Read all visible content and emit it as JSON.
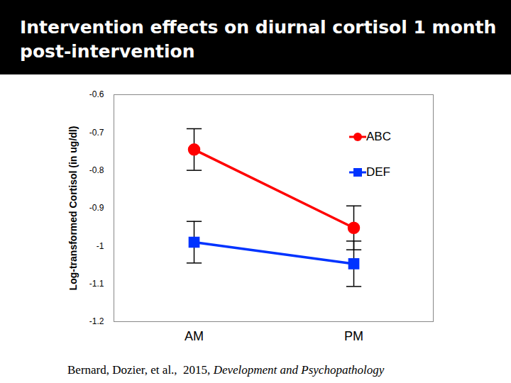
{
  "chart_data": {
    "type": "line",
    "title": "Intervention effects on diurnal cortisol 1 month post-intervention",
    "ylabel": "Log-transformed Cortisol (in ug/dl)",
    "caption": "Bernard, Dozier, et al.,  2015, Development and Psychopathology",
    "categories": [
      "AM",
      "PM"
    ],
    "series": [
      {
        "name": "ABC",
        "color": "#ff0000",
        "marker": "circle",
        "values": [
          -0.745,
          -0.952
        ],
        "errors": [
          0.055,
          0.058
        ]
      },
      {
        "name": "DEF",
        "color": "#0033ff",
        "marker": "square",
        "values": [
          -0.99,
          -1.047
        ],
        "errors": [
          0.055,
          0.06
        ]
      }
    ],
    "ylim": [
      -1.2,
      -0.6
    ],
    "yticks": [
      -1.2,
      -1.1,
      -1,
      -0.9,
      -0.8,
      -0.7,
      -0.6
    ],
    "grid": false,
    "legend": "right"
  }
}
